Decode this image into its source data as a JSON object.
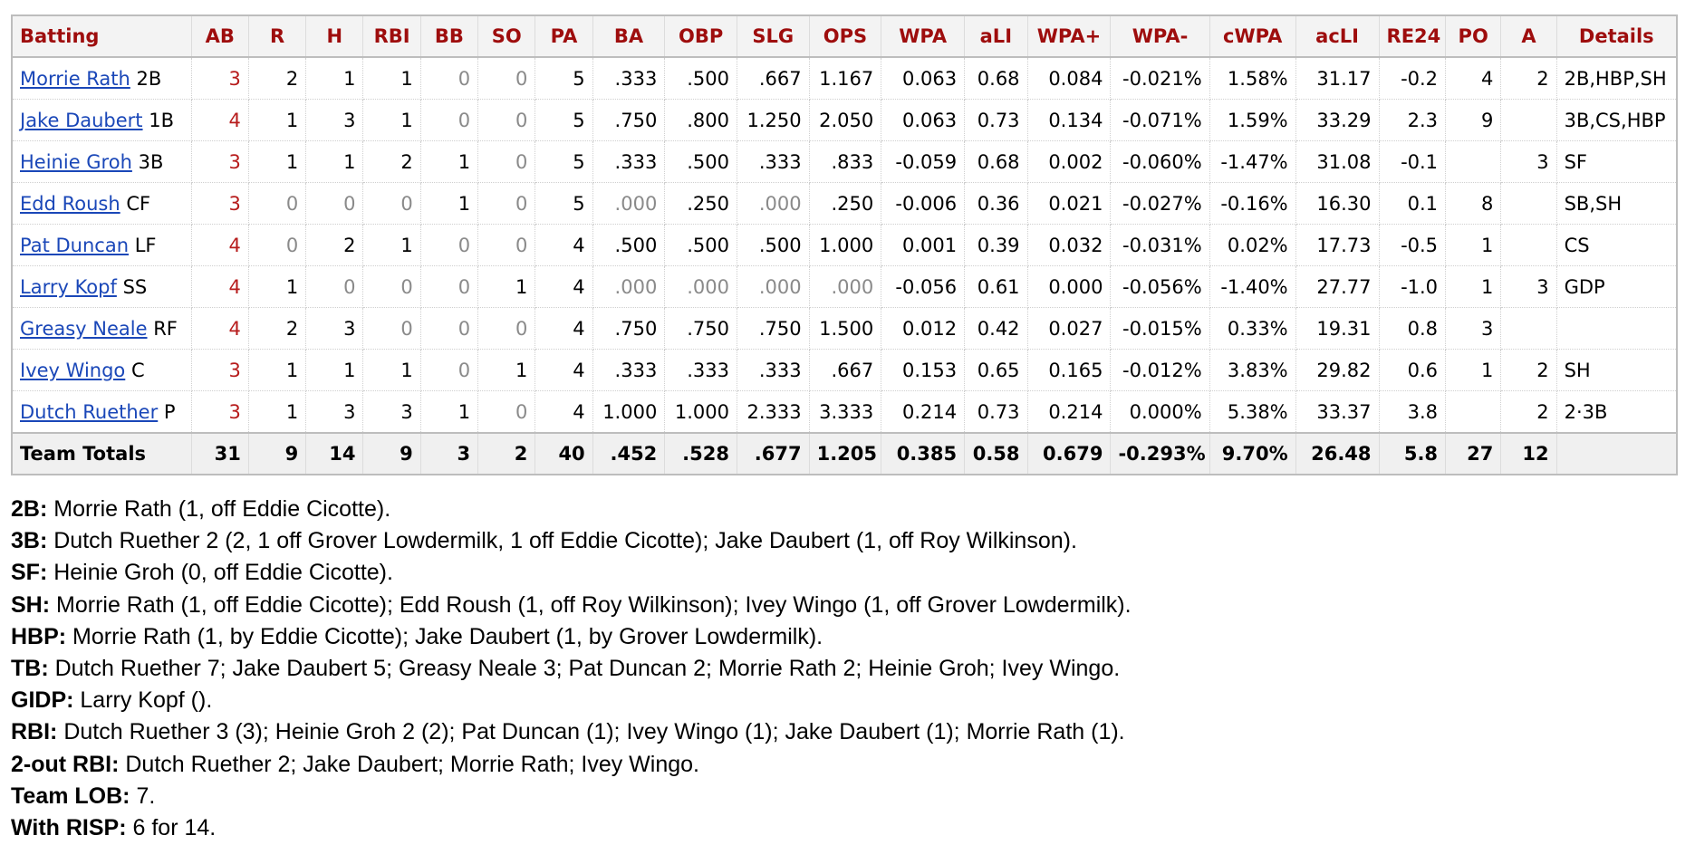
{
  "table": {
    "headers": [
      "Batting",
      "AB",
      "R",
      "H",
      "RBI",
      "BB",
      "SO",
      "PA",
      "BA",
      "OBP",
      "SLG",
      "OPS",
      "WPA",
      "aLI",
      "WPA+",
      "WPA-",
      "cWPA",
      "acLI",
      "RE24",
      "PO",
      "A",
      "Details"
    ],
    "rows": [
      {
        "name": "Morrie Rath",
        "pos": "2B",
        "AB": "3",
        "R": "2",
        "H": "1",
        "RBI": "1",
        "BB": "0",
        "SO": "0",
        "PA": "5",
        "BA": ".333",
        "OBP": ".500",
        "SLG": ".667",
        "OPS": "1.167",
        "WPA": "0.063",
        "aLI": "0.68",
        "WPA+": "0.084",
        "WPA-": "-0.021%",
        "cWPA": "1.58%",
        "acLI": "31.17",
        "RE24": "-0.2",
        "PO": "4",
        "A": "2",
        "Details": "2B,HBP,SH"
      },
      {
        "name": "Jake Daubert",
        "pos": "1B",
        "AB": "4",
        "R": "1",
        "H": "3",
        "RBI": "1",
        "BB": "0",
        "SO": "0",
        "PA": "5",
        "BA": ".750",
        "OBP": ".800",
        "SLG": "1.250",
        "OPS": "2.050",
        "WPA": "0.063",
        "aLI": "0.73",
        "WPA+": "0.134",
        "WPA-": "-0.071%",
        "cWPA": "1.59%",
        "acLI": "33.29",
        "RE24": "2.3",
        "PO": "9",
        "A": "",
        "Details": "3B,CS,HBP"
      },
      {
        "name": "Heinie Groh",
        "pos": "3B",
        "AB": "3",
        "R": "1",
        "H": "1",
        "RBI": "2",
        "BB": "1",
        "SO": "0",
        "PA": "5",
        "BA": ".333",
        "OBP": ".500",
        "SLG": ".333",
        "OPS": ".833",
        "WPA": "-0.059",
        "aLI": "0.68",
        "WPA+": "0.002",
        "WPA-": "-0.060%",
        "cWPA": "-1.47%",
        "acLI": "31.08",
        "RE24": "-0.1",
        "PO": "",
        "A": "3",
        "Details": "SF"
      },
      {
        "name": "Edd Roush",
        "pos": "CF",
        "AB": "3",
        "R": "0",
        "H": "0",
        "RBI": "0",
        "BB": "1",
        "SO": "0",
        "PA": "5",
        "BA": ".000",
        "OBP": ".250",
        "SLG": ".000",
        "OPS": ".250",
        "WPA": "-0.006",
        "aLI": "0.36",
        "WPA+": "0.021",
        "WPA-": "-0.027%",
        "cWPA": "-0.16%",
        "acLI": "16.30",
        "RE24": "0.1",
        "PO": "8",
        "A": "",
        "Details": "SB,SH"
      },
      {
        "name": "Pat Duncan",
        "pos": "LF",
        "AB": "4",
        "R": "0",
        "H": "2",
        "RBI": "1",
        "BB": "0",
        "SO": "0",
        "PA": "4",
        "BA": ".500",
        "OBP": ".500",
        "SLG": ".500",
        "OPS": "1.000",
        "WPA": "0.001",
        "aLI": "0.39",
        "WPA+": "0.032",
        "WPA-": "-0.031%",
        "cWPA": "0.02%",
        "acLI": "17.73",
        "RE24": "-0.5",
        "PO": "1",
        "A": "",
        "Details": "CS"
      },
      {
        "name": "Larry Kopf",
        "pos": "SS",
        "AB": "4",
        "R": "1",
        "H": "0",
        "RBI": "0",
        "BB": "0",
        "SO": "1",
        "PA": "4",
        "BA": ".000",
        "OBP": ".000",
        "SLG": ".000",
        "OPS": ".000",
        "WPA": "-0.056",
        "aLI": "0.61",
        "WPA+": "0.000",
        "WPA-": "-0.056%",
        "cWPA": "-1.40%",
        "acLI": "27.77",
        "RE24": "-1.0",
        "PO": "1",
        "A": "3",
        "Details": "GDP"
      },
      {
        "name": "Greasy Neale",
        "pos": "RF",
        "AB": "4",
        "R": "2",
        "H": "3",
        "RBI": "0",
        "BB": "0",
        "SO": "0",
        "PA": "4",
        "BA": ".750",
        "OBP": ".750",
        "SLG": ".750",
        "OPS": "1.500",
        "WPA": "0.012",
        "aLI": "0.42",
        "WPA+": "0.027",
        "WPA-": "-0.015%",
        "cWPA": "0.33%",
        "acLI": "19.31",
        "RE24": "0.8",
        "PO": "3",
        "A": "",
        "Details": ""
      },
      {
        "name": "Ivey Wingo",
        "pos": "C",
        "AB": "3",
        "R": "1",
        "H": "1",
        "RBI": "1",
        "BB": "0",
        "SO": "1",
        "PA": "4",
        "BA": ".333",
        "OBP": ".333",
        "SLG": ".333",
        "OPS": ".667",
        "WPA": "0.153",
        "aLI": "0.65",
        "WPA+": "0.165",
        "WPA-": "-0.012%",
        "cWPA": "3.83%",
        "acLI": "29.82",
        "RE24": "0.6",
        "PO": "1",
        "A": "2",
        "Details": "SH"
      },
      {
        "name": "Dutch Ruether",
        "pos": "P",
        "AB": "3",
        "R": "1",
        "H": "3",
        "RBI": "3",
        "BB": "1",
        "SO": "0",
        "PA": "4",
        "BA": "1.000",
        "OBP": "1.000",
        "SLG": "2.333",
        "OPS": "3.333",
        "WPA": "0.214",
        "aLI": "0.73",
        "WPA+": "0.214",
        "WPA-": "0.000%",
        "cWPA": "5.38%",
        "acLI": "33.37",
        "RE24": "3.8",
        "PO": "",
        "A": "2",
        "Details": "2·3B"
      }
    ],
    "totals": {
      "label": "Team Totals",
      "AB": "31",
      "R": "9",
      "H": "14",
      "RBI": "9",
      "BB": "3",
      "SO": "2",
      "PA": "40",
      "BA": ".452",
      "OBP": ".528",
      "SLG": ".677",
      "OPS": "1.205",
      "WPA": "0.385",
      "aLI": "0.58",
      "WPA+": "0.679",
      "WPA-": "-0.293%",
      "cWPA": "9.70%",
      "acLI": "26.48",
      "RE24": "5.8",
      "PO": "27",
      "A": "12",
      "Details": ""
    }
  },
  "notes": [
    {
      "label": "2B:",
      "text": " Morrie Rath (1, off Eddie Cicotte)."
    },
    {
      "label": "3B:",
      "text": " Dutch Ruether 2 (2, 1 off Grover Lowdermilk, 1 off Eddie Cicotte); Jake Daubert (1, off Roy Wilkinson)."
    },
    {
      "label": "SF:",
      "text": " Heinie Groh (0, off Eddie Cicotte)."
    },
    {
      "label": "SH:",
      "text": " Morrie Rath (1, off Eddie Cicotte); Edd Roush (1, off Roy Wilkinson); Ivey Wingo (1, off Grover Lowdermilk)."
    },
    {
      "label": "HBP:",
      "text": " Morrie Rath (1, by Eddie Cicotte); Jake Daubert (1, by Grover Lowdermilk)."
    },
    {
      "label": "TB:",
      "text": " Dutch Ruether 7; Jake Daubert 5; Greasy Neale 3; Pat Duncan 2; Morrie Rath 2; Heinie Groh; Ivey Wingo."
    },
    {
      "label": "GIDP:",
      "text": " Larry Kopf ()."
    },
    {
      "label": "RBI:",
      "text": " Dutch Ruether 3 (3); Heinie Groh 2 (2); Pat Duncan (1); Ivey Wingo (1); Jake Daubert (1); Morrie Rath (1)."
    },
    {
      "label": "2-out RBI:",
      "text": " Dutch Ruether 2; Jake Daubert; Morrie Rath; Ivey Wingo."
    },
    {
      "label": "Team LOB:",
      "text": " 7."
    },
    {
      "label": "With RISP:",
      "text": " 6 for 14."
    }
  ]
}
